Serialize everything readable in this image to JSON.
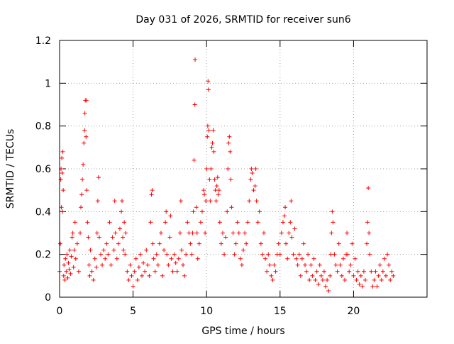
{
  "chart_data": {
    "type": "scatter",
    "title": "Day 031 of 2026, SRMTID for receiver sun6",
    "xlabel": "GPS time / hours",
    "ylabel": "SRMTID / TECUs",
    "xlim": [
      0,
      25
    ],
    "ylim": [
      0,
      1.2
    ],
    "x_ticks": [
      0,
      5,
      10,
      15,
      20
    ],
    "x_tick_labels": [
      "0",
      "5",
      "10",
      "15",
      "20"
    ],
    "y_ticks": [
      0,
      0.2,
      0.4,
      0.6,
      0.8,
      1.0,
      1.2
    ],
    "y_tick_labels": [
      "0",
      "0.2",
      "0.4",
      "0.6",
      "0.8",
      "1",
      "1.2"
    ],
    "grid": true,
    "marker": "+",
    "series": [
      {
        "name": "SRMTID",
        "color": "#ff0000",
        "points": [
          [
            0.0,
            0.12
          ],
          [
            0.05,
            0.25
          ],
          [
            0.08,
            0.55
          ],
          [
            0.1,
            0.6
          ],
          [
            0.12,
            0.42
          ],
          [
            0.15,
            0.65
          ],
          [
            0.18,
            0.58
          ],
          [
            0.2,
            0.4
          ],
          [
            0.22,
            0.68
          ],
          [
            0.25,
            0.5
          ],
          [
            0.28,
            0.1
          ],
          [
            0.3,
            0.15
          ],
          [
            0.35,
            0.08
          ],
          [
            0.4,
            0.18
          ],
          [
            0.45,
            0.12
          ],
          [
            0.5,
            0.2
          ],
          [
            0.55,
            0.09
          ],
          [
            0.6,
            0.16
          ],
          [
            0.65,
            0.13
          ],
          [
            0.7,
            0.22
          ],
          [
            0.75,
            0.11
          ],
          [
            0.8,
            0.19
          ],
          [
            0.85,
            0.28
          ],
          [
            0.9,
            0.3
          ],
          [
            0.95,
            0.14
          ],
          [
            1.0,
            0.22
          ],
          [
            1.05,
            0.35
          ],
          [
            1.1,
            0.18
          ],
          [
            1.2,
            0.25
          ],
          [
            1.3,
            0.12
          ],
          [
            1.4,
            0.3
          ],
          [
            1.45,
            0.42
          ],
          [
            1.5,
            0.48
          ],
          [
            1.55,
            0.55
          ],
          [
            1.6,
            0.62
          ],
          [
            1.65,
            0.72
          ],
          [
            1.7,
            0.78
          ],
          [
            1.72,
            0.86
          ],
          [
            1.75,
            0.92
          ],
          [
            1.8,
            0.75
          ],
          [
            1.82,
            0.92
          ],
          [
            1.85,
            0.5
          ],
          [
            1.9,
            0.35
          ],
          [
            1.95,
            0.28
          ],
          [
            2.0,
            0.15
          ],
          [
            2.05,
            0.1
          ],
          [
            2.1,
            0.22
          ],
          [
            2.2,
            0.12
          ],
          [
            2.3,
            0.08
          ],
          [
            2.4,
            0.18
          ],
          [
            2.5,
            0.14
          ],
          [
            2.55,
            0.3
          ],
          [
            2.6,
            0.45
          ],
          [
            2.65,
            0.56
          ],
          [
            2.7,
            0.28
          ],
          [
            2.8,
            0.2
          ],
          [
            2.9,
            0.15
          ],
          [
            3.0,
            0.22
          ],
          [
            3.1,
            0.18
          ],
          [
            3.2,
            0.25
          ],
          [
            3.3,
            0.2
          ],
          [
            3.4,
            0.35
          ],
          [
            3.5,
            0.15
          ],
          [
            3.6,
            0.28
          ],
          [
            3.7,
            0.22
          ],
          [
            3.75,
            0.45
          ],
          [
            3.8,
            0.3
          ],
          [
            3.9,
            0.18
          ],
          [
            4.0,
            0.25
          ],
          [
            4.1,
            0.32
          ],
          [
            4.2,
            0.4
          ],
          [
            4.25,
            0.45
          ],
          [
            4.3,
            0.28
          ],
          [
            4.35,
            0.22
          ],
          [
            4.4,
            0.35
          ],
          [
            4.45,
            0.2
          ],
          [
            4.5,
            0.3
          ],
          [
            4.6,
            0.12
          ],
          [
            4.7,
            0.08
          ],
          [
            4.8,
            0.15
          ],
          [
            4.9,
            0.1
          ],
          [
            5.0,
            0.05
          ],
          [
            5.1,
            0.12
          ],
          [
            5.2,
            0.18
          ],
          [
            5.3,
            0.08
          ],
          [
            5.4,
            0.14
          ],
          [
            5.5,
            0.2
          ],
          [
            5.6,
            0.1
          ],
          [
            5.7,
            0.16
          ],
          [
            5.8,
            0.12
          ],
          [
            5.9,
            0.22
          ],
          [
            6.0,
            0.15
          ],
          [
            6.1,
            0.1
          ],
          [
            6.2,
            0.35
          ],
          [
            6.25,
            0.48
          ],
          [
            6.3,
            0.5
          ],
          [
            6.35,
            0.25
          ],
          [
            6.4,
            0.18
          ],
          [
            6.5,
            0.12
          ],
          [
            6.6,
            0.2
          ],
          [
            6.7,
            0.15
          ],
          [
            6.8,
            0.25
          ],
          [
            6.9,
            0.3
          ],
          [
            7.0,
            0.1
          ],
          [
            7.1,
            0.22
          ],
          [
            7.2,
            0.35
          ],
          [
            7.25,
            0.4
          ],
          [
            7.3,
            0.2
          ],
          [
            7.4,
            0.15
          ],
          [
            7.5,
            0.28
          ],
          [
            7.55,
            0.38
          ],
          [
            7.6,
            0.18
          ],
          [
            7.7,
            0.12
          ],
          [
            7.8,
            0.2
          ],
          [
            7.9,
            0.16
          ],
          [
            8.0,
            0.12
          ],
          [
            8.1,
            0.18
          ],
          [
            8.2,
            0.3
          ],
          [
            8.25,
            0.45
          ],
          [
            8.3,
            0.22
          ],
          [
            8.4,
            0.15
          ],
          [
            8.5,
            0.1
          ],
          [
            8.6,
            0.2
          ],
          [
            8.7,
            0.35
          ],
          [
            8.8,
            0.3
          ],
          [
            8.9,
            0.25
          ],
          [
            9.0,
            0.2
          ],
          [
            9.05,
            0.3
          ],
          [
            9.1,
            0.4
          ],
          [
            9.15,
            0.64
          ],
          [
            9.2,
            0.9
          ],
          [
            9.22,
            1.11
          ],
          [
            9.3,
            0.42
          ],
          [
            9.35,
            0.3
          ],
          [
            9.4,
            0.18
          ],
          [
            9.5,
            0.25
          ],
          [
            9.6,
            0.35
          ],
          [
            9.7,
            0.4
          ],
          [
            9.8,
            0.5
          ],
          [
            9.85,
            0.48
          ],
          [
            9.9,
            0.3
          ],
          [
            9.95,
            0.45
          ],
          [
            10.0,
            0.6
          ],
          [
            10.05,
            0.75
          ],
          [
            10.08,
            0.8
          ],
          [
            10.1,
            1.01
          ],
          [
            10.12,
            0.97
          ],
          [
            10.15,
            0.78
          ],
          [
            10.2,
            0.55
          ],
          [
            10.25,
            0.45
          ],
          [
            10.3,
            0.6
          ],
          [
            10.35,
            0.7
          ],
          [
            10.4,
            0.72
          ],
          [
            10.45,
            0.78
          ],
          [
            10.5,
            0.68
          ],
          [
            10.55,
            0.55
          ],
          [
            10.6,
            0.5
          ],
          [
            10.65,
            0.45
          ],
          [
            10.7,
            0.52
          ],
          [
            10.75,
            0.56
          ],
          [
            10.8,
            0.48
          ],
          [
            10.85,
            0.5
          ],
          [
            10.9,
            0.35
          ],
          [
            11.0,
            0.25
          ],
          [
            11.1,
            0.3
          ],
          [
            11.2,
            0.2
          ],
          [
            11.3,
            0.28
          ],
          [
            11.4,
            0.4
          ],
          [
            11.45,
            0.6
          ],
          [
            11.5,
            0.72
          ],
          [
            11.55,
            0.75
          ],
          [
            11.6,
            0.68
          ],
          [
            11.65,
            0.55
          ],
          [
            11.7,
            0.42
          ],
          [
            11.8,
            0.3
          ],
          [
            11.9,
            0.2
          ],
          [
            12.0,
            0.25
          ],
          [
            12.1,
            0.35
          ],
          [
            12.2,
            0.3
          ],
          [
            12.3,
            0.18
          ],
          [
            12.4,
            0.15
          ],
          [
            12.5,
            0.22
          ],
          [
            12.6,
            0.3
          ],
          [
            12.7,
            0.25
          ],
          [
            12.8,
            0.35
          ],
          [
            12.9,
            0.45
          ],
          [
            13.0,
            0.55
          ],
          [
            13.05,
            0.6
          ],
          [
            13.1,
            0.58
          ],
          [
            13.2,
            0.5
          ],
          [
            13.3,
            0.52
          ],
          [
            13.35,
            0.6
          ],
          [
            13.4,
            0.45
          ],
          [
            13.5,
            0.35
          ],
          [
            13.6,
            0.4
          ],
          [
            13.7,
            0.25
          ],
          [
            13.8,
            0.2
          ],
          [
            13.9,
            0.3
          ],
          [
            14.0,
            0.18
          ],
          [
            14.1,
            0.12
          ],
          [
            14.2,
            0.2
          ],
          [
            14.3,
            0.15
          ],
          [
            14.4,
            0.1
          ],
          [
            14.5,
            0.08
          ],
          [
            14.6,
            0.15
          ],
          [
            14.7,
            0.12
          ],
          [
            14.8,
            0.2
          ],
          [
            14.9,
            0.25
          ],
          [
            15.0,
            0.2
          ],
          [
            15.1,
            0.3
          ],
          [
            15.2,
            0.35
          ],
          [
            15.3,
            0.38
          ],
          [
            15.35,
            0.42
          ],
          [
            15.4,
            0.25
          ],
          [
            15.5,
            0.18
          ],
          [
            15.6,
            0.3
          ],
          [
            15.7,
            0.35
          ],
          [
            15.75,
            0.45
          ],
          [
            15.8,
            0.28
          ],
          [
            15.9,
            0.2
          ],
          [
            16.0,
            0.32
          ],
          [
            16.1,
            0.18
          ],
          [
            16.2,
            0.15
          ],
          [
            16.3,
            0.2
          ],
          [
            16.4,
            0.1
          ],
          [
            16.5,
            0.18
          ],
          [
            16.6,
            0.25
          ],
          [
            16.7,
            0.15
          ],
          [
            16.8,
            0.12
          ],
          [
            16.9,
            0.2
          ],
          [
            17.0,
            0.08
          ],
          [
            17.1,
            0.15
          ],
          [
            17.2,
            0.1
          ],
          [
            17.3,
            0.18
          ],
          [
            17.4,
            0.08
          ],
          [
            17.5,
            0.12
          ],
          [
            17.6,
            0.06
          ],
          [
            17.7,
            0.15
          ],
          [
            17.8,
            0.1
          ],
          [
            17.9,
            0.08
          ],
          [
            18.0,
            0.12
          ],
          [
            18.1,
            0.05
          ],
          [
            18.2,
            0.08
          ],
          [
            18.3,
            0.03
          ],
          [
            18.4,
            0.1
          ],
          [
            18.45,
            0.2
          ],
          [
            18.5,
            0.3
          ],
          [
            18.55,
            0.4
          ],
          [
            18.6,
            0.35
          ],
          [
            18.7,
            0.2
          ],
          [
            18.8,
            0.15
          ],
          [
            18.9,
            0.12
          ],
          [
            19.0,
            0.25
          ],
          [
            19.1,
            0.15
          ],
          [
            19.2,
            0.1
          ],
          [
            19.3,
            0.18
          ],
          [
            19.4,
            0.08
          ],
          [
            19.5,
            0.2
          ],
          [
            19.55,
            0.3
          ],
          [
            19.6,
            0.2
          ],
          [
            19.7,
            0.12
          ],
          [
            19.8,
            0.15
          ],
          [
            19.9,
            0.25
          ],
          [
            20.0,
            0.1
          ],
          [
            20.1,
            0.18
          ],
          [
            20.2,
            0.08
          ],
          [
            20.3,
            0.12
          ],
          [
            20.4,
            0.06
          ],
          [
            20.5,
            0.1
          ],
          [
            20.6,
            0.05
          ],
          [
            20.7,
            0.12
          ],
          [
            20.8,
            0.08
          ],
          [
            20.9,
            0.25
          ],
          [
            20.95,
            0.35
          ],
          [
            21.0,
            0.51
          ],
          [
            21.05,
            0.3
          ],
          [
            21.1,
            0.2
          ],
          [
            21.2,
            0.12
          ],
          [
            21.3,
            0.05
          ],
          [
            21.4,
            0.08
          ],
          [
            21.5,
            0.12
          ],
          [
            21.6,
            0.05
          ],
          [
            21.7,
            0.1
          ],
          [
            21.8,
            0.15
          ],
          [
            21.9,
            0.08
          ],
          [
            22.0,
            0.12
          ],
          [
            22.1,
            0.18
          ],
          [
            22.2,
            0.1
          ],
          [
            22.3,
            0.2
          ],
          [
            22.4,
            0.15
          ],
          [
            22.5,
            0.08
          ],
          [
            22.6,
            0.12
          ],
          [
            22.7,
            0.1
          ]
        ]
      }
    ]
  }
}
